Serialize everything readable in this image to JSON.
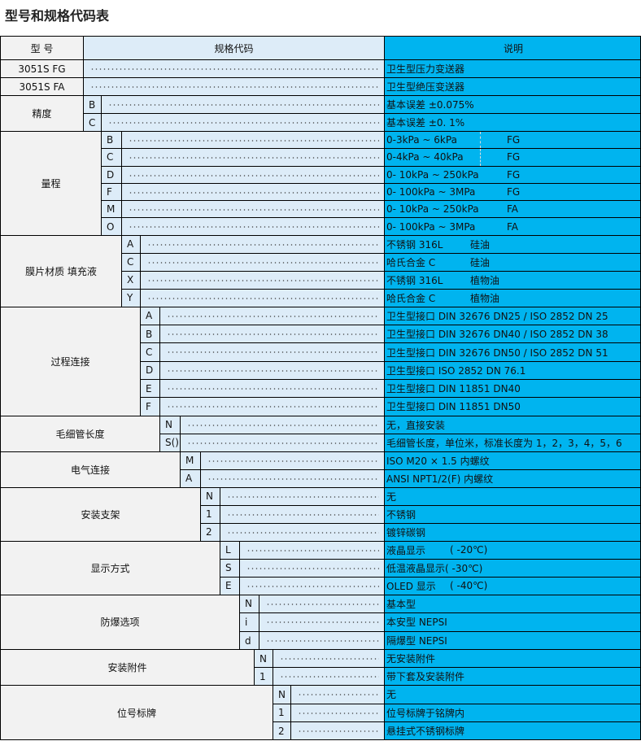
{
  "title": "型号和规格代码表",
  "header": {
    "model": "型 号",
    "code": "规格代码",
    "desc": "说明"
  },
  "colors": {
    "label_bg": "#f2f2f2",
    "code_bg": "#ddecf8",
    "desc_bg": "#00b4ef"
  },
  "groups": [
    {
      "label": "3051S FG",
      "rows": [
        {
          "code": "",
          "desc": "卫生型压力变送器"
        }
      ]
    },
    {
      "label": "3051S FA",
      "rows": [
        {
          "code": "",
          "desc": "卫生型绝压变送器"
        }
      ]
    },
    {
      "label": "精度",
      "rows": [
        {
          "code": "B",
          "desc": "基本误差 ±0.075%"
        },
        {
          "code": "C",
          "desc": "基本误差 ±0. 1%"
        }
      ]
    },
    {
      "label": "量程",
      "rows": [
        {
          "code": "B",
          "desc": "0-3kPa ~ 6kPa",
          "note": "FG"
        },
        {
          "code": "C",
          "desc": "0-4kPa ~ 40kPa",
          "note": "FG"
        },
        {
          "code": "D",
          "desc": "0- 10kPa ~ 250kPa",
          "note": "FG"
        },
        {
          "code": "F",
          "desc": "0- 100kPa ~ 3MPa",
          "note": "FG"
        },
        {
          "code": "M",
          "desc": "0- 10kPa ~ 250kPa",
          "note": "FA"
        },
        {
          "code": "O",
          "desc": "0- 100kPa ~ 3MPa",
          "note": "FA"
        }
      ]
    },
    {
      "label": "膜片材质 填充液",
      "rows": [
        {
          "code": "A",
          "desc": "不锈钢 316L",
          "note": "硅油"
        },
        {
          "code": "C",
          "desc": "哈氏合金 C",
          "note": "硅油"
        },
        {
          "code": "X",
          "desc": "不锈钢 316L",
          "note": "植物油"
        },
        {
          "code": "Y",
          "desc": "哈氏合金 C",
          "note": "植物油"
        }
      ]
    },
    {
      "label": "过程连接",
      "rows": [
        {
          "code": "A",
          "desc": "卫生型接口 DIN 32676 DN25 / ISO 2852 DN 25"
        },
        {
          "code": "B",
          "desc": "卫生型接口 DIN 32676 DN40 / ISO 2852 DN 38"
        },
        {
          "code": "C",
          "desc": "卫生型接口 DIN 32676 DN50 / ISO 2852 DN 51"
        },
        {
          "code": "D",
          "desc": "卫生型接口 ISO 2852 DN 76.1"
        },
        {
          "code": "E",
          "desc": "卫生型接口 DIN 11851 DN40"
        },
        {
          "code": "F",
          "desc": "卫生型接口 DIN 11851 DN50"
        }
      ]
    },
    {
      "label": "毛细管长度",
      "rows": [
        {
          "code": "N",
          "desc": "无，直接安装"
        },
        {
          "code": "S()",
          "desc": "毛细管长度，单位米，标准长度为 1，2，3，4，5，6"
        }
      ]
    },
    {
      "label": "电气连接",
      "rows": [
        {
          "code": "M",
          "desc": "ISO M20 × 1.5 内螺纹"
        },
        {
          "code": "A",
          "desc": "ANSI NPT1/2(F) 内螺纹"
        }
      ]
    },
    {
      "label": "安装支架",
      "rows": [
        {
          "code": "N",
          "desc": "无"
        },
        {
          "code": "1",
          "desc": "不锈钢"
        },
        {
          "code": "2",
          "desc": "镀锌碳钢"
        }
      ]
    },
    {
      "label": "显示方式",
      "rows": [
        {
          "code": "L",
          "desc": "液晶显示",
          "note": "( -20℃)"
        },
        {
          "code": "S",
          "desc": "低温液晶显示( -30℃)"
        },
        {
          "code": "E",
          "desc": "OLED 显示",
          "note": "( -40℃)"
        }
      ]
    },
    {
      "label": "防爆选项",
      "rows": [
        {
          "code": "N",
          "desc": "基本型"
        },
        {
          "code": "i",
          "desc": "本安型  NEPSI"
        },
        {
          "code": "d",
          "desc": "隔爆型  NEPSI"
        }
      ]
    },
    {
      "label": "安装附件",
      "rows": [
        {
          "code": "N",
          "desc": "无安装附件"
        },
        {
          "code": "1",
          "desc": "带下套及安装附件"
        }
      ]
    },
    {
      "label": "位号标牌",
      "rows": [
        {
          "code": "N",
          "desc": "无"
        },
        {
          "code": "1",
          "desc": "位号标牌于铭牌内"
        },
        {
          "code": "2",
          "desc": "悬挂式不锈钢标牌"
        }
      ]
    }
  ]
}
